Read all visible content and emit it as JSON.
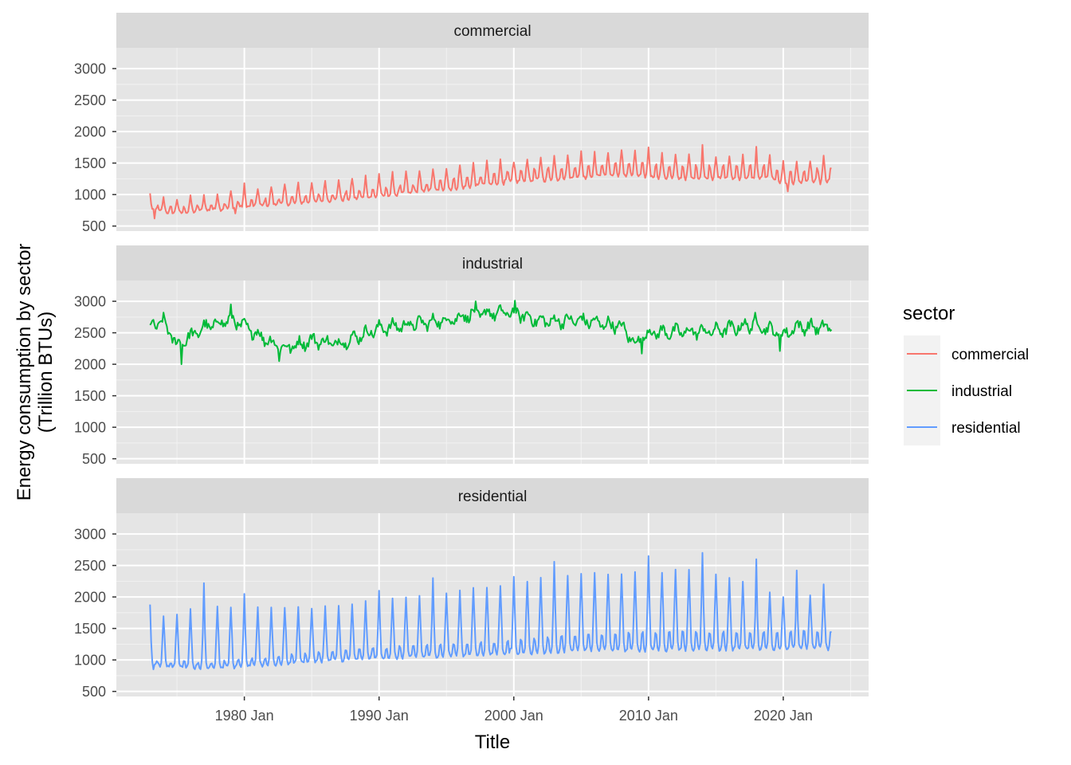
{
  "chart_data": {
    "type": "line",
    "facet_by": "sector",
    "xlabel": "Title",
    "ylabel": "Energy consumption by sector\n(Trillion BTUs)",
    "y_tick_values": [
      500,
      1000,
      1500,
      2000,
      2500,
      3000
    ],
    "ylim": [
      420,
      3330
    ],
    "x_tick_labels": [
      "1980 Jan",
      "1990 Jan",
      "2000 Jan",
      "2010 Jan",
      "2020 Jan"
    ],
    "x_tick_values": [
      "1980-01",
      "1990-01",
      "2000-01",
      "2010-01",
      "2020-01"
    ],
    "xlim": [
      "1970-07",
      "2026-05"
    ],
    "x_start": "1973-01",
    "x_end": "2023-08",
    "resolution": "monthly",
    "grid": true,
    "legend": {
      "title": "sector",
      "position": "right",
      "entries": [
        "commercial",
        "industrial",
        "residential"
      ]
    },
    "panel_background": "#e5e5e5",
    "strip_background": "#d9d9d9",
    "series": [
      {
        "name": "commercial",
        "color": "#F8766D",
        "strip_label": "commercial",
        "trend": [
          [
            1973,
            800
          ],
          [
            1975,
            760
          ],
          [
            1980,
            870
          ],
          [
            1990,
            1050
          ],
          [
            2000,
            1300
          ],
          [
            2008,
            1420
          ],
          [
            2012,
            1360
          ],
          [
            2019,
            1360
          ],
          [
            2020,
            1270
          ],
          [
            2023,
            1310
          ]
        ],
        "winter_peak": [
          [
            1973,
            210
          ],
          [
            1985,
            330
          ],
          [
            1995,
            360
          ],
          [
            2008,
            380
          ],
          [
            2023,
            360
          ]
        ],
        "summer_peak": [
          [
            1973,
            90
          ],
          [
            1990,
            140
          ],
          [
            2005,
            230
          ],
          [
            2023,
            250
          ]
        ],
        "annual_high": [
          [
            1973,
            1020
          ],
          [
            1980,
            1180
          ],
          [
            1990,
            1330
          ],
          [
            1995,
            1410
          ],
          [
            2000,
            1510
          ],
          [
            2005,
            1690
          ],
          [
            2010,
            1750
          ],
          [
            2014,
            1790
          ],
          [
            2018,
            1760
          ],
          [
            2023,
            1620
          ]
        ],
        "annual_low": [
          [
            1973,
            620
          ],
          [
            1980,
            700
          ],
          [
            1990,
            960
          ],
          [
            2000,
            1230
          ],
          [
            2010,
            1270
          ],
          [
            2020,
            1050
          ],
          [
            2023,
            1160
          ]
        ],
        "noise": 30
      },
      {
        "name": "industrial",
        "color": "#00BA38",
        "strip_label": "industrial",
        "trend": [
          [
            1973,
            2600
          ],
          [
            1974,
            2680
          ],
          [
            1975,
            2300
          ],
          [
            1977,
            2580
          ],
          [
            1979,
            2720
          ],
          [
            1980,
            2600
          ],
          [
            1982,
            2350
          ],
          [
            1983,
            2250
          ],
          [
            1985,
            2380
          ],
          [
            1987,
            2330
          ],
          [
            1990,
            2570
          ],
          [
            1995,
            2700
          ],
          [
            1997,
            2800
          ],
          [
            2000,
            2820
          ],
          [
            2002,
            2680
          ],
          [
            2005,
            2700
          ],
          [
            2008,
            2600
          ],
          [
            2009,
            2330
          ],
          [
            2010,
            2500
          ],
          [
            2015,
            2530
          ],
          [
            2018,
            2640
          ],
          [
            2020,
            2460
          ],
          [
            2021,
            2600
          ],
          [
            2023,
            2580
          ]
        ],
        "annual_high": [
          [
            1979,
            2950
          ],
          [
            1997,
            3000
          ],
          [
            2000,
            3010
          ],
          [
            2018,
            2820
          ]
        ],
        "annual_low": [
          [
            1975,
            2000
          ],
          [
            1983,
            2050
          ],
          [
            2009,
            2170
          ],
          [
            2020,
            2210
          ]
        ],
        "seasonal_amplitude": 70,
        "noise": 75
      },
      {
        "name": "residential",
        "color": "#619CFF",
        "strip_label": "residential",
        "trend": [
          [
            1973,
            1050
          ],
          [
            1980,
            1080
          ],
          [
            1990,
            1220
          ],
          [
            2000,
            1340
          ],
          [
            2005,
            1420
          ],
          [
            2010,
            1430
          ],
          [
            2014,
            1450
          ],
          [
            2020,
            1380
          ],
          [
            2023,
            1400
          ]
        ],
        "winter_peak": [
          [
            1973,
            700
          ],
          [
            1977,
            1000
          ],
          [
            1985,
            850
          ],
          [
            1995,
            1000
          ],
          [
            2003,
            1200
          ],
          [
            2010,
            1250
          ],
          [
            2014,
            1300
          ],
          [
            2020,
            820
          ],
          [
            2023,
            900
          ]
        ],
        "summer_peak": [
          [
            1973,
            80
          ],
          [
            1990,
            200
          ],
          [
            2000,
            250
          ],
          [
            2010,
            350
          ],
          [
            2023,
            320
          ]
        ],
        "annual_high": [
          [
            1973,
            1880
          ],
          [
            1977,
            2220
          ],
          [
            1980,
            2050
          ],
          [
            1990,
            2100
          ],
          [
            1994,
            2300
          ],
          [
            2000,
            2320
          ],
          [
            2003,
            2560
          ],
          [
            2010,
            2650
          ],
          [
            2014,
            2700
          ],
          [
            2018,
            2600
          ],
          [
            2021,
            2420
          ],
          [
            2023,
            2200
          ]
        ],
        "annual_low": [
          [
            1973,
            850
          ],
          [
            1980,
            900
          ],
          [
            1990,
            1080
          ],
          [
            2000,
            1180
          ],
          [
            2010,
            1180
          ],
          [
            2023,
            1150
          ]
        ],
        "noise": 25
      }
    ]
  }
}
